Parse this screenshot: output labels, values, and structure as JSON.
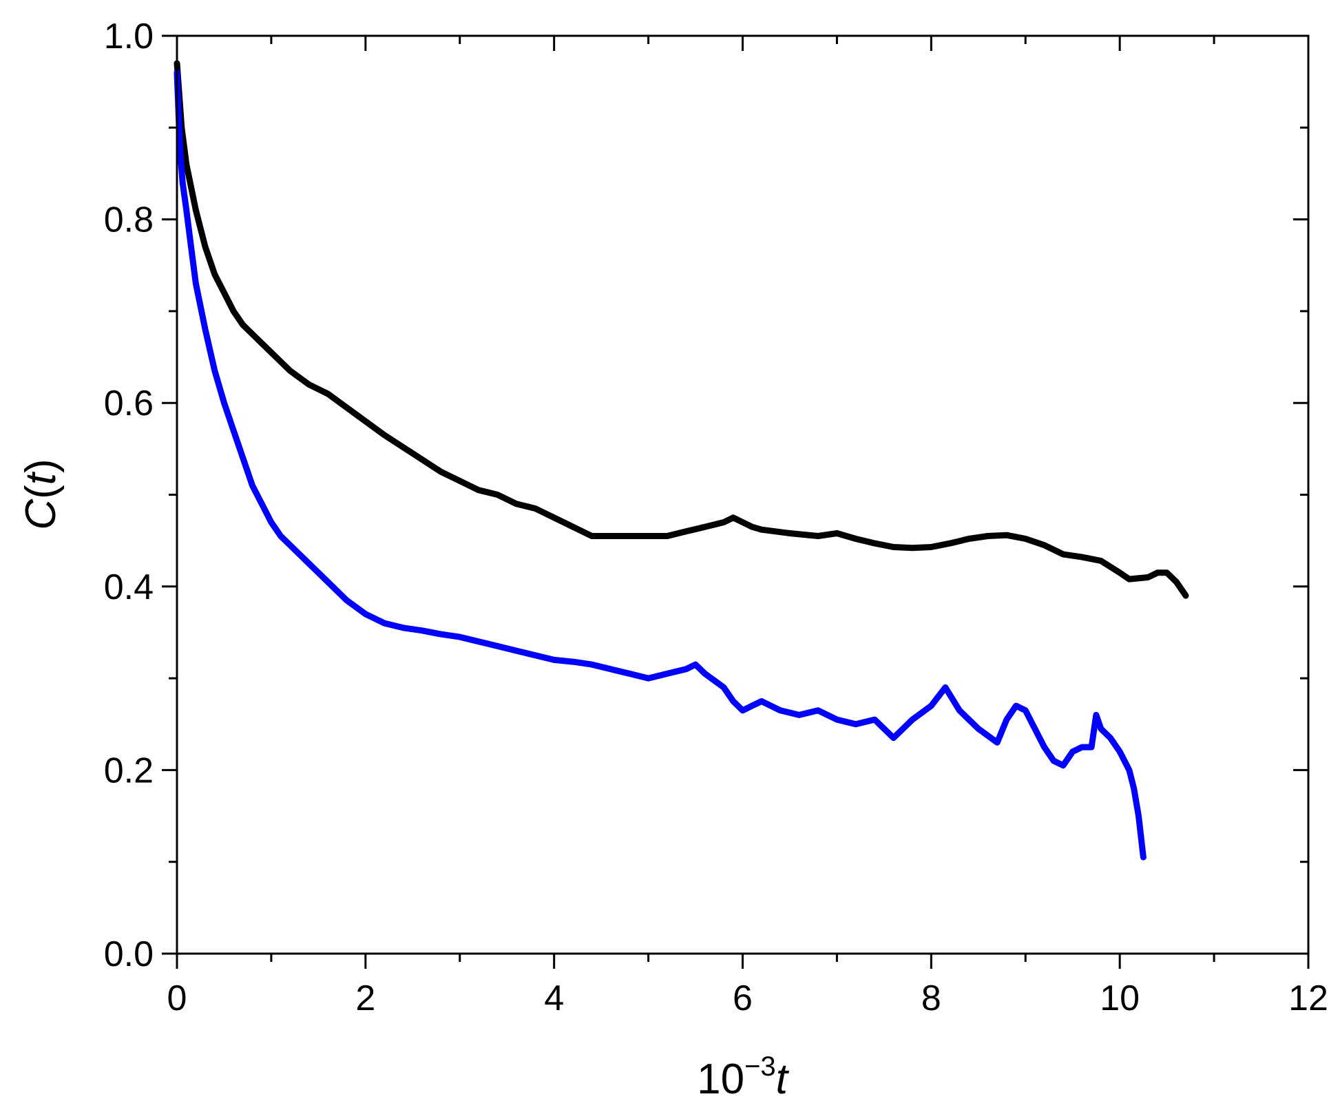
{
  "chart_data": {
    "type": "line",
    "title": "",
    "xlabel": {
      "base": "10",
      "exponent": "−3",
      "var": "t"
    },
    "ylabel": {
      "prefix": "C(",
      "var": "t",
      "suffix": ")"
    },
    "xlim": [
      0,
      12
    ],
    "ylim": [
      0,
      1.0
    ],
    "x_ticks": [
      0,
      2,
      4,
      6,
      8,
      10,
      12
    ],
    "x_tick_labels": [
      "0",
      "2",
      "4",
      "6",
      "8",
      "10",
      "12"
    ],
    "x_minor_ticks": [
      1,
      3,
      5,
      7,
      9,
      11
    ],
    "y_ticks": [
      0,
      0.2,
      0.4,
      0.6,
      0.8,
      1.0
    ],
    "y_tick_labels": [
      "0.0",
      "0.2",
      "0.4",
      "0.6",
      "0.8",
      "1.0"
    ],
    "y_minor_ticks": [
      0.1,
      0.3,
      0.5,
      0.7,
      0.9
    ],
    "grid": false,
    "legend": "none",
    "series": [
      {
        "color": "#000000",
        "x": [
          0,
          0.05,
          0.1,
          0.2,
          0.3,
          0.4,
          0.5,
          0.6,
          0.7,
          0.8,
          0.9,
          1.0,
          1.1,
          1.2,
          1.4,
          1.6,
          1.8,
          2.0,
          2.2,
          2.5,
          2.8,
          3.0,
          3.2,
          3.4,
          3.6,
          3.8,
          4.0,
          4.2,
          4.4,
          4.6,
          4.8,
          5.0,
          5.2,
          5.4,
          5.6,
          5.8,
          5.9,
          6.0,
          6.1,
          6.2,
          6.5,
          6.8,
          7.0,
          7.2,
          7.4,
          7.6,
          7.8,
          8.0,
          8.2,
          8.4,
          8.6,
          8.8,
          9.0,
          9.2,
          9.4,
          9.6,
          9.8,
          10.0,
          10.1,
          10.3,
          10.4,
          10.5,
          10.6,
          10.7
        ],
        "y": [
          0.97,
          0.9,
          0.86,
          0.81,
          0.77,
          0.74,
          0.72,
          0.7,
          0.685,
          0.675,
          0.665,
          0.655,
          0.645,
          0.635,
          0.62,
          0.61,
          0.595,
          0.58,
          0.565,
          0.545,
          0.525,
          0.515,
          0.505,
          0.5,
          0.49,
          0.485,
          0.475,
          0.465,
          0.455,
          0.455,
          0.455,
          0.455,
          0.455,
          0.46,
          0.465,
          0.47,
          0.475,
          0.47,
          0.465,
          0.462,
          0.458,
          0.455,
          0.458,
          0.452,
          0.447,
          0.443,
          0.442,
          0.443,
          0.447,
          0.452,
          0.455,
          0.456,
          0.452,
          0.445,
          0.435,
          0.432,
          0.428,
          0.415,
          0.408,
          0.41,
          0.415,
          0.415,
          0.405,
          0.39
        ]
      },
      {
        "color": "#0000ff",
        "x": [
          0,
          0.03,
          0.06,
          0.1,
          0.15,
          0.2,
          0.3,
          0.4,
          0.5,
          0.6,
          0.7,
          0.8,
          0.9,
          1.0,
          1.1,
          1.2,
          1.4,
          1.6,
          1.8,
          2.0,
          2.2,
          2.4,
          2.6,
          2.8,
          3.0,
          3.2,
          3.4,
          3.6,
          3.8,
          4.0,
          4.2,
          4.4,
          4.6,
          4.8,
          5.0,
          5.2,
          5.4,
          5.5,
          5.6,
          5.8,
          5.9,
          6.0,
          6.1,
          6.2,
          6.4,
          6.6,
          6.8,
          7.0,
          7.2,
          7.4,
          7.5,
          7.6,
          7.8,
          8.0,
          8.15,
          8.3,
          8.5,
          8.7,
          8.8,
          8.9,
          9.0,
          9.1,
          9.2,
          9.3,
          9.4,
          9.5,
          9.6,
          9.7,
          9.75,
          9.8,
          9.9,
          10.0,
          10.1,
          10.15,
          10.2,
          10.25
        ],
        "y": [
          0.96,
          0.88,
          0.84,
          0.81,
          0.77,
          0.73,
          0.68,
          0.635,
          0.6,
          0.57,
          0.54,
          0.51,
          0.49,
          0.47,
          0.455,
          0.445,
          0.425,
          0.405,
          0.385,
          0.37,
          0.36,
          0.355,
          0.352,
          0.348,
          0.345,
          0.34,
          0.335,
          0.33,
          0.325,
          0.32,
          0.318,
          0.315,
          0.31,
          0.305,
          0.3,
          0.305,
          0.31,
          0.315,
          0.305,
          0.29,
          0.275,
          0.265,
          0.27,
          0.275,
          0.265,
          0.26,
          0.265,
          0.255,
          0.25,
          0.255,
          0.245,
          0.235,
          0.255,
          0.27,
          0.29,
          0.265,
          0.245,
          0.23,
          0.255,
          0.27,
          0.265,
          0.245,
          0.225,
          0.21,
          0.205,
          0.22,
          0.225,
          0.225,
          0.26,
          0.245,
          0.235,
          0.22,
          0.2,
          0.18,
          0.15,
          0.105
        ]
      }
    ]
  }
}
